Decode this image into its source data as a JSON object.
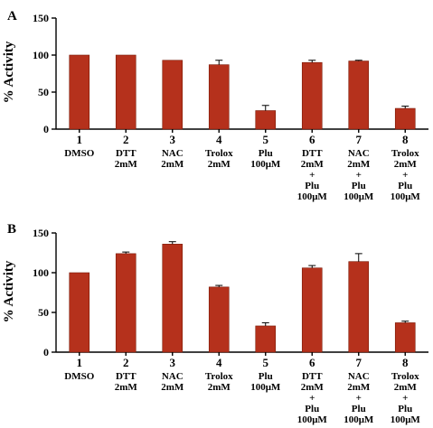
{
  "chart_data": [
    {
      "type": "bar",
      "panel": "A",
      "ylabel": "% Activity",
      "ylim": [
        0,
        150
      ],
      "yticks": [
        "0",
        "50",
        "100",
        "150"
      ],
      "bar_color": "#b5311c",
      "categories": [
        {
          "num": "1",
          "lines": [
            "DMSO"
          ]
        },
        {
          "num": "2",
          "lines": [
            "DTT",
            "2mM"
          ]
        },
        {
          "num": "3",
          "lines": [
            "NAC",
            "2mM"
          ]
        },
        {
          "num": "4",
          "lines": [
            "Trolox",
            "2mM"
          ]
        },
        {
          "num": "5",
          "lines": [
            "Plu",
            "100μM"
          ]
        },
        {
          "num": "6",
          "lines": [
            "DTT",
            "2mM",
            "+",
            "Plu",
            "100μM"
          ]
        },
        {
          "num": "7",
          "lines": [
            "NAC",
            "2mM",
            "+",
            "Plu",
            "100μM"
          ]
        },
        {
          "num": "8",
          "lines": [
            "Trolox",
            "2mM",
            "+",
            "Plu",
            "100μM"
          ]
        }
      ],
      "values": [
        100,
        100,
        93,
        87,
        25,
        90,
        92,
        28
      ],
      "errors": [
        0,
        0,
        0,
        6,
        7,
        3,
        1,
        3
      ]
    },
    {
      "type": "bar",
      "panel": "B",
      "ylabel": "% Activity",
      "ylim": [
        0,
        150
      ],
      "yticks": [
        "0",
        "50",
        "100",
        "150"
      ],
      "bar_color": "#b5311c",
      "categories": [
        {
          "num": "1",
          "lines": [
            "DMSO"
          ]
        },
        {
          "num": "2",
          "lines": [
            "DTT",
            "2mM"
          ]
        },
        {
          "num": "3",
          "lines": [
            "NAC",
            "2mM"
          ]
        },
        {
          "num": "4",
          "lines": [
            "Trolox",
            "2mM"
          ]
        },
        {
          "num": "5",
          "lines": [
            "Plu",
            "100μM"
          ]
        },
        {
          "num": "6",
          "lines": [
            "DTT",
            "2mM",
            "+",
            "Plu",
            "100μM"
          ]
        },
        {
          "num": "7",
          "lines": [
            "NAC",
            "2mM",
            "+",
            "Plu",
            "100μM"
          ]
        },
        {
          "num": "8",
          "lines": [
            "Trolox",
            "2mM",
            "+",
            "Plu",
            "100μM"
          ]
        }
      ],
      "values": [
        100,
        124,
        136,
        82,
        33,
        106,
        114,
        37
      ],
      "errors": [
        0,
        2,
        3,
        2,
        4,
        3,
        10,
        2
      ]
    }
  ]
}
